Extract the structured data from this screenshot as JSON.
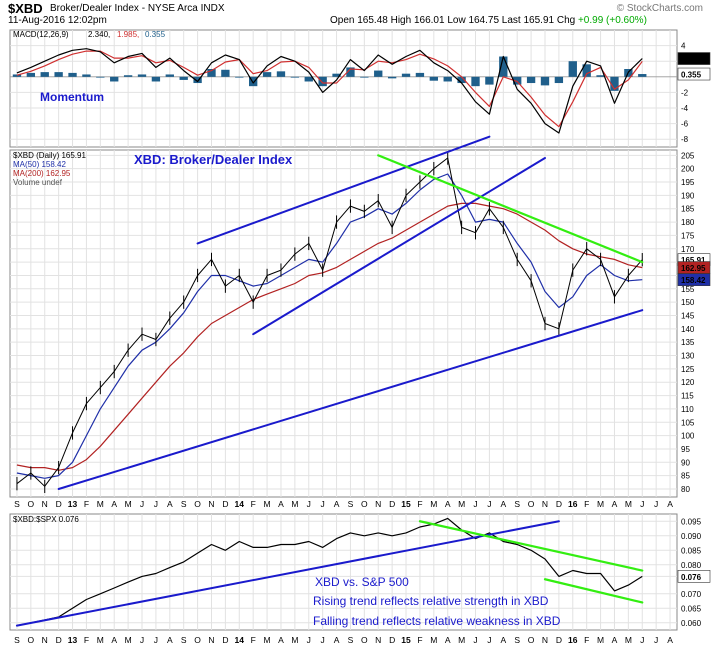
{
  "header": {
    "symbol": "$XBD",
    "name": "Broker/Dealer Index - NYSE Arca INDX",
    "date": "11-Aug-2016 12:02pm",
    "quote_prefix": "Open 165.48  High 166.01  Low 164.75  Last 165.91  Chg ",
    "change": "+0.99 (+0.60%)",
    "brand": "© StockCharts.com"
  },
  "colors": {
    "price": "#000000",
    "ma50": "#1f2fa8",
    "ma200": "#b22222",
    "trendline_blue": "#1a1acc",
    "trendline_green": "#33ee11",
    "text_blue": "#1a1acc",
    "macd_hist": "#1f5f8b"
  },
  "chart_data": [
    {
      "type": "line",
      "title": "MACD(12,26,9) 2.340, 1.985, 0.355",
      "legend": {
        "label": "MACD(12,26,9)",
        "macd": "2.340",
        "signal": "1.985",
        "hist": "0.355"
      },
      "annotation": "Momentum",
      "ylim": [
        -9,
        6
      ],
      "yticks": [
        "4",
        "2",
        "-2",
        "-4",
        "-6",
        "-8"
      ],
      "last_values": {
        "macd": "2.340",
        "hist": "0.355"
      },
      "x_months": [
        9,
        10,
        11,
        12,
        13,
        14,
        15,
        16,
        17,
        18,
        19,
        20,
        21,
        22,
        23,
        24,
        25,
        26,
        27,
        28,
        29,
        30,
        31,
        32,
        33,
        34,
        35,
        36,
        37,
        38,
        39,
        40,
        41,
        42,
        43,
        44,
        45,
        46,
        47,
        48,
        49,
        50,
        51,
        52,
        53,
        54
      ],
      "macd": [
        0.5,
        1.2,
        2.0,
        2.8,
        3.4,
        3.6,
        3.2,
        1.8,
        2.6,
        3.0,
        1.2,
        2.4,
        0.8,
        -0.6,
        1.8,
        2.8,
        2.2,
        -0.8,
        1.4,
        2.6,
        2.0,
        0.6,
        -2.0,
        -0.4,
        2.2,
        0.8,
        2.8,
        1.6,
        2.6,
        3.4,
        1.8,
        0.8,
        -0.8,
        -3.2,
        -4.8,
        2.6,
        -1.6,
        -3.4,
        -6.0,
        -7.2,
        -1.2,
        2.0,
        1.4,
        -3.4,
        0.6,
        2.34
      ],
      "signal": [
        0.2,
        0.7,
        1.4,
        2.2,
        2.9,
        3.3,
        3.3,
        2.4,
        2.4,
        2.7,
        1.8,
        2.1,
        1.2,
        0.2,
        0.8,
        1.9,
        2.2,
        0.4,
        0.8,
        1.9,
        2.0,
        1.2,
        -0.8,
        -0.8,
        1.0,
        0.9,
        2.0,
        1.8,
        2.2,
        2.9,
        2.3,
        1.4,
        0.0,
        -2.0,
        -3.8,
        0.0,
        -0.6,
        -2.6,
        -4.9,
        -6.4,
        -3.2,
        0.4,
        1.2,
        -1.6,
        -0.4,
        1.985
      ]
    },
    {
      "type": "line",
      "title": "XBD: Broker/Dealer Index",
      "legend": [
        {
          "label": "$XBD (Daily) 165.91"
        },
        {
          "label": "MA(50) 158.42"
        },
        {
          "label": "MA(200) 162.95"
        },
        {
          "label": "Volume undef"
        }
      ],
      "ylim": [
        77,
        207
      ],
      "yticks": [
        80,
        85,
        90,
        95,
        100,
        105,
        110,
        115,
        120,
        125,
        130,
        135,
        140,
        145,
        150,
        155,
        160,
        165,
        170,
        175,
        180,
        185,
        190,
        195,
        200,
        205
      ],
      "last_values": {
        "price": "165.91",
        "ma200": "162.95",
        "ma50": "158.42"
      },
      "x_months": [
        9,
        10,
        11,
        12,
        13,
        14,
        15,
        16,
        17,
        18,
        19,
        20,
        21,
        22,
        23,
        24,
        25,
        26,
        27,
        28,
        29,
        30,
        31,
        32,
        33,
        34,
        35,
        36,
        37,
        38,
        39,
        40,
        41,
        42,
        43,
        44,
        45,
        46,
        47,
        48,
        49,
        50,
        51,
        52,
        53,
        54
      ],
      "price": [
        82,
        86,
        81,
        88,
        101,
        112,
        118,
        124,
        132,
        138,
        136,
        144,
        150,
        160,
        166,
        156,
        160,
        150,
        160,
        162,
        168,
        172,
        162,
        180,
        186,
        184,
        188,
        178,
        190,
        195,
        200,
        204,
        178,
        176,
        185,
        178,
        166,
        158,
        142,
        140,
        162,
        170,
        166,
        152,
        160,
        165.91
      ],
      "ma50": [
        86,
        85,
        84,
        85,
        90,
        100,
        110,
        118,
        126,
        132,
        135,
        140,
        146,
        154,
        160,
        160,
        158,
        156,
        157,
        160,
        163,
        166,
        165,
        172,
        180,
        182,
        185,
        183,
        187,
        192,
        196,
        198,
        190,
        180,
        181,
        180,
        172,
        165,
        154,
        148,
        152,
        160,
        164,
        160,
        158,
        158.42
      ],
      "ma200": [
        89,
        88,
        88,
        87,
        88,
        91,
        96,
        102,
        108,
        114,
        120,
        126,
        131,
        137,
        142,
        145,
        148,
        151,
        153,
        155,
        157,
        160,
        161,
        163,
        166,
        169,
        172,
        174,
        177,
        180,
        183,
        186,
        187,
        187,
        186,
        185,
        183,
        180,
        177,
        173,
        170,
        168,
        167,
        166,
        164,
        162.95
      ],
      "trendlines": [
        {
          "label": "upper channel",
          "from": [
            22,
            172
          ],
          "to": [
            43,
            212
          ]
        },
        {
          "label": "lower channel",
          "from": [
            26,
            138
          ],
          "to": [
            47,
            204
          ]
        },
        {
          "label": "long-term support",
          "from": [
            12,
            80
          ],
          "to": [
            54,
            147
          ]
        },
        {
          "label": "descending resistance",
          "from": [
            35,
            205
          ],
          "to": [
            54,
            165
          ]
        }
      ]
    },
    {
      "type": "line",
      "title": "$XBD:$SPX 0.076",
      "legend": {
        "label": "$XBD:$SPX 0.076"
      },
      "annotation_lines": [
        "XBD vs. S&P 500",
        "Rising trend reflects relative strength in XBD",
        "Falling trend reflects relative weakness in XBD"
      ],
      "ylim": [
        0.0575,
        0.0975
      ],
      "yticks": [
        "0.095",
        "0.090",
        "0.085",
        "0.080",
        "0.076",
        "0.070",
        "0.065",
        "0.060"
      ],
      "last_value": "0.076",
      "x_months": [
        9,
        10,
        11,
        12,
        13,
        14,
        15,
        16,
        17,
        18,
        19,
        20,
        21,
        22,
        23,
        24,
        25,
        26,
        27,
        28,
        29,
        30,
        31,
        32,
        33,
        34,
        35,
        36,
        37,
        38,
        39,
        40,
        41,
        42,
        43,
        44,
        45,
        46,
        47,
        48,
        49,
        50,
        51,
        52,
        53,
        54
      ],
      "ratio": [
        0.059,
        0.06,
        0.061,
        0.062,
        0.065,
        0.068,
        0.07,
        0.072,
        0.074,
        0.076,
        0.077,
        0.079,
        0.081,
        0.084,
        0.087,
        0.085,
        0.088,
        0.086,
        0.086,
        0.087,
        0.087,
        0.088,
        0.086,
        0.089,
        0.091,
        0.09,
        0.091,
        0.09,
        0.091,
        0.093,
        0.094,
        0.096,
        0.092,
        0.089,
        0.091,
        0.088,
        0.087,
        0.085,
        0.082,
        0.076,
        0.078,
        0.077,
        0.077,
        0.071,
        0.073,
        0.076
      ],
      "trendlines": [
        {
          "label": "rising relative strength",
          "from": [
            9,
            0.059
          ],
          "to": [
            48,
            0.095
          ]
        },
        {
          "label": "falling upper",
          "from": [
            38,
            0.095
          ],
          "to": [
            54,
            0.078
          ]
        },
        {
          "label": "falling lower",
          "from": [
            47,
            0.075
          ],
          "to": [
            54,
            0.067
          ]
        }
      ]
    }
  ],
  "x_axis": {
    "labels": [
      {
        "m": 9,
        "t": "S"
      },
      {
        "m": 10,
        "t": "O"
      },
      {
        "m": 11,
        "t": "N"
      },
      {
        "m": 12,
        "t": "D"
      },
      {
        "m": 13,
        "t": "13",
        "year": true
      },
      {
        "m": 14,
        "t": "F"
      },
      {
        "m": 15,
        "t": "M"
      },
      {
        "m": 16,
        "t": "A"
      },
      {
        "m": 17,
        "t": "M"
      },
      {
        "m": 18,
        "t": "J"
      },
      {
        "m": 19,
        "t": "J"
      },
      {
        "m": 20,
        "t": "A"
      },
      {
        "m": 21,
        "t": "S"
      },
      {
        "m": 22,
        "t": "O"
      },
      {
        "m": 23,
        "t": "N"
      },
      {
        "m": 24,
        "t": "D"
      },
      {
        "m": 25,
        "t": "14",
        "year": true
      },
      {
        "m": 26,
        "t": "F"
      },
      {
        "m": 27,
        "t": "M"
      },
      {
        "m": 28,
        "t": "A"
      },
      {
        "m": 29,
        "t": "M"
      },
      {
        "m": 30,
        "t": "J"
      },
      {
        "m": 31,
        "t": "J"
      },
      {
        "m": 32,
        "t": "A"
      },
      {
        "m": 33,
        "t": "S"
      },
      {
        "m": 34,
        "t": "O"
      },
      {
        "m": 35,
        "t": "N"
      },
      {
        "m": 36,
        "t": "D"
      },
      {
        "m": 37,
        "t": "15",
        "year": true
      },
      {
        "m": 38,
        "t": "F"
      },
      {
        "m": 39,
        "t": "M"
      },
      {
        "m": 40,
        "t": "A"
      },
      {
        "m": 41,
        "t": "M"
      },
      {
        "m": 42,
        "t": "J"
      },
      {
        "m": 43,
        "t": "J"
      },
      {
        "m": 44,
        "t": "A"
      },
      {
        "m": 45,
        "t": "S"
      },
      {
        "m": 46,
        "t": "O"
      },
      {
        "m": 47,
        "t": "N"
      },
      {
        "m": 48,
        "t": "D"
      },
      {
        "m": 49,
        "t": "16",
        "year": true
      },
      {
        "m": 50,
        "t": "F"
      },
      {
        "m": 51,
        "t": "M"
      },
      {
        "m": 52,
        "t": "A"
      },
      {
        "m": 53,
        "t": "M"
      },
      {
        "m": 54,
        "t": "J"
      },
      {
        "m": 55,
        "t": "J"
      },
      {
        "m": 56,
        "t": "A"
      }
    ]
  }
}
